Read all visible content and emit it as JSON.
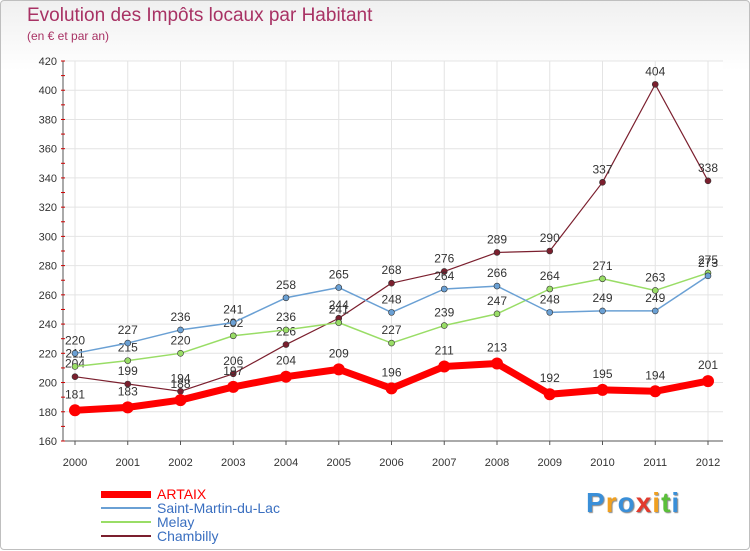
{
  "chart_data": {
    "type": "line",
    "title": "Evolution des Impôts locaux par Habitant",
    "subtitle": "(en € et par an)",
    "x": [
      "2000",
      "2001",
      "2002",
      "2003",
      "2004",
      "2005",
      "2006",
      "2007",
      "2008",
      "2009",
      "2010",
      "2011",
      "2012"
    ],
    "ylim": [
      160,
      420
    ],
    "yticks": [
      160,
      180,
      200,
      220,
      240,
      260,
      280,
      300,
      320,
      340,
      360,
      380,
      400,
      420
    ],
    "series": [
      {
        "name": "Chambilly",
        "color": "#7b1f2e",
        "width": 1.2,
        "values": [
          204,
          199,
          194,
          206,
          226,
          244,
          268,
          276,
          289,
          290,
          337,
          404,
          338
        ]
      },
      {
        "name": "Melay",
        "color": "#99dd66",
        "width": 1.5,
        "values": [
          211,
          215,
          220,
          232,
          236,
          241,
          227,
          239,
          247,
          264,
          271,
          263,
          275
        ]
      },
      {
        "name": "Saint-Martin-du-Lac",
        "color": "#6aa0d4",
        "width": 1.5,
        "values": [
          220,
          227,
          236,
          241,
          258,
          265,
          248,
          264,
          266,
          248,
          249,
          249,
          273
        ]
      },
      {
        "name": "ARTAIX",
        "color": "#ff0000",
        "width": 7,
        "values": [
          181,
          183,
          188,
          197,
          204,
          209,
          196,
          211,
          213,
          192,
          195,
          194,
          201
        ]
      }
    ],
    "legend": [
      "ARTAIX",
      "Saint-Martin-du-Lac",
      "Melay",
      "Chambilly"
    ]
  },
  "legend_colors": {
    "ARTAIX": "#ff0000",
    "Saint-Martin-du-Lac": "#6aa0d4",
    "Melay": "#99dd66",
    "Chambilly": "#7b1f2e"
  },
  "logo": {
    "letters": [
      "P",
      "r",
      "o",
      "x",
      "i",
      "t",
      "i"
    ],
    "colors": [
      "#3a8fd8",
      "#f0a020",
      "#3a8fd8",
      "#e23b2e",
      "#f0a020",
      "#5bbf3a",
      "#3a8fd8"
    ]
  }
}
